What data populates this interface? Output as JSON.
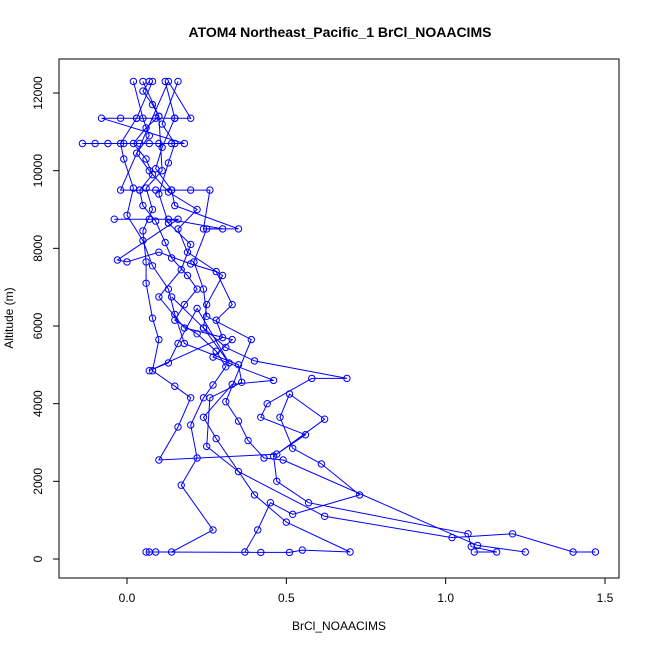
{
  "chart_data": {
    "type": "line",
    "title": "ATOM4 Northeast_Pacific_1 BrCl_NOAACIMS",
    "xlabel": "BrCl_NOAACIMS",
    "ylabel": "Altitude (m)",
    "xlim": [
      -0.2,
      1.5
    ],
    "ylim": [
      -300,
      12700
    ],
    "xticks": [
      0.0,
      0.5,
      1.0,
      1.5
    ],
    "xtick_labels": [
      "0.0",
      "0.5",
      "1.0",
      "1.5"
    ],
    "yticks": [
      0,
      2000,
      4000,
      6000,
      8000,
      10000,
      12000
    ],
    "ytick_labels": [
      "0",
      "2000",
      "4000",
      "6000",
      "8000",
      "10000",
      "12000"
    ],
    "grid": false,
    "legend": "none",
    "series_color": "#0000ff",
    "marker": "open-circle",
    "series": [
      {
        "points": [
          [
            0.07,
            180
          ],
          [
            0.14,
            180
          ],
          [
            0.27,
            750
          ],
          [
            0.17,
            1900
          ],
          [
            0.22,
            2600
          ],
          [
            0.2,
            3450
          ],
          [
            0.24,
            4150
          ],
          [
            0.27,
            4480
          ],
          [
            0.31,
            4950
          ],
          [
            0.28,
            5350
          ],
          [
            0.22,
            5800
          ],
          [
            0.15,
            6150
          ],
          [
            0.18,
            6550
          ],
          [
            0.22,
            6950
          ],
          [
            0.19,
            7300
          ],
          [
            0.14,
            7750
          ],
          [
            0.12,
            8150
          ],
          [
            0.09,
            8700
          ],
          [
            0.05,
            9100
          ],
          [
            0.04,
            9500
          ],
          [
            0.08,
            9900
          ],
          [
            0.06,
            10300
          ],
          [
            0.02,
            10700
          ],
          [
            0.06,
            11100
          ],
          [
            0.1,
            11400
          ],
          [
            0.08,
            11700
          ],
          [
            0.05,
            12050
          ],
          [
            0.07,
            12300
          ]
        ]
      },
      {
        "points": [
          [
            0.06,
            180
          ],
          [
            0.09,
            180
          ],
          [
            0.42,
            170
          ],
          [
            0.51,
            170
          ],
          [
            0.55,
            230
          ],
          [
            0.7,
            180
          ],
          [
            0.5,
            950
          ],
          [
            0.4,
            1650
          ],
          [
            0.28,
            3100
          ],
          [
            0.24,
            3650
          ],
          [
            0.33,
            4500
          ],
          [
            0.46,
            4600
          ],
          [
            0.27,
            5200
          ],
          [
            0.33,
            5650
          ],
          [
            0.18,
            5950
          ],
          [
            0.1,
            6750
          ],
          [
            0.17,
            7450
          ],
          [
            0.2,
            8100
          ],
          [
            0.13,
            8650
          ],
          [
            0.1,
            9400
          ],
          [
            0.13,
            10200
          ],
          [
            0.15,
            10700
          ],
          [
            0.11,
            11200
          ],
          [
            0.16,
            12300
          ]
        ]
      },
      {
        "points": [
          [
            1.47,
            180
          ],
          [
            1.4,
            180
          ],
          [
            1.21,
            650
          ],
          [
            1.02,
            550
          ],
          [
            0.62,
            1100
          ],
          [
            0.35,
            2250
          ],
          [
            0.25,
            2900
          ],
          [
            0.26,
            4150
          ],
          [
            0.36,
            4550
          ],
          [
            0.35,
            5000
          ],
          [
            0.18,
            5550
          ],
          [
            0.15,
            6300
          ],
          [
            0.13,
            6950
          ],
          [
            0.08,
            7550
          ],
          [
            0.05,
            8200
          ],
          [
            0.0,
            8850
          ],
          [
            0.02,
            9550
          ],
          [
            -0.01,
            10300
          ],
          [
            -0.02,
            10700
          ],
          [
            0.03,
            11350
          ],
          [
            0.08,
            12300
          ]
        ]
      },
      {
        "points": [
          [
            1.09,
            180
          ],
          [
            1.16,
            180
          ],
          [
            1.08,
            320
          ],
          [
            1.07,
            650
          ],
          [
            0.57,
            1450
          ],
          [
            0.47,
            2000
          ],
          [
            0.46,
            2650
          ],
          [
            0.56,
            3200
          ],
          [
            0.42,
            3650
          ],
          [
            0.44,
            4000
          ],
          [
            0.58,
            4650
          ],
          [
            0.69,
            4650
          ],
          [
            0.4,
            5100
          ],
          [
            0.31,
            5450
          ],
          [
            0.24,
            5950
          ],
          [
            0.25,
            6550
          ],
          [
            0.3,
            7300
          ],
          [
            0.19,
            7900
          ],
          [
            0.16,
            8500
          ],
          [
            0.22,
            9000
          ],
          [
            0.13,
            9450
          ],
          [
            0.07,
            10000
          ],
          [
            0.03,
            10450
          ],
          [
            0.07,
            10900
          ],
          [
            0.05,
            11350
          ],
          [
            0.02,
            12300
          ]
        ]
      },
      {
        "points": [
          [
            0.37,
            180
          ],
          [
            0.41,
            750
          ],
          [
            0.45,
            1450
          ],
          [
            0.52,
            1150
          ],
          [
            0.73,
            1650
          ],
          [
            0.61,
            2450
          ],
          [
            0.52,
            2850
          ],
          [
            0.48,
            3650
          ],
          [
            0.51,
            4250
          ],
          [
            0.62,
            3600
          ],
          [
            0.47,
            2700
          ],
          [
            0.1,
            2550
          ],
          [
            0.16,
            3400
          ],
          [
            0.2,
            4150
          ],
          [
            0.15,
            4450
          ],
          [
            0.08,
            4850
          ],
          [
            0.1,
            5650
          ],
          [
            0.08,
            6200
          ],
          [
            0.06,
            7100
          ],
          [
            0.06,
            7650
          ],
          [
            0.05,
            8450
          ],
          [
            0.08,
            9000
          ],
          [
            0.06,
            9550
          ],
          [
            0.11,
            10000
          ],
          [
            0.1,
            11400
          ],
          [
            0.05,
            12300
          ]
        ]
      },
      {
        "points": [
          [
            1.25,
            180
          ],
          [
            1.1,
            350
          ],
          [
            0.49,
            2550
          ],
          [
            0.43,
            2600
          ],
          [
            0.38,
            3050
          ],
          [
            0.35,
            3550
          ],
          [
            0.31,
            4050
          ],
          [
            0.39,
            5650
          ],
          [
            0.25,
            6250
          ],
          [
            0.24,
            6950
          ],
          [
            0.21,
            7650
          ],
          [
            0.25,
            8500
          ],
          [
            0.35,
            8500
          ],
          [
            0.15,
            9100
          ],
          [
            0.14,
            9500
          ],
          [
            0.09,
            10050
          ],
          [
            0.11,
            10600
          ],
          [
            0.15,
            11350
          ],
          [
            0.12,
            12300
          ]
        ]
      },
      {
        "points": [
          [
            -0.14,
            10700
          ],
          [
            -0.1,
            10700
          ],
          [
            -0.06,
            10700
          ],
          [
            -0.01,
            10700
          ],
          [
            0.04,
            10700
          ],
          [
            0.07,
            10700
          ],
          [
            0.1,
            10700
          ],
          [
            0.14,
            10700
          ],
          [
            0.18,
            10700
          ],
          [
            -0.08,
            11350
          ],
          [
            -0.02,
            11350
          ],
          [
            0.03,
            11350
          ],
          [
            0.09,
            11350
          ],
          [
            0.15,
            11350
          ],
          [
            0.2,
            11350
          ],
          [
            0.13,
            12300
          ],
          [
            -0.02,
            9500
          ],
          [
            0.04,
            9500
          ],
          [
            0.09,
            9500
          ],
          [
            0.14,
            9500
          ],
          [
            0.2,
            9500
          ],
          [
            0.26,
            9500
          ],
          [
            0.24,
            8500
          ],
          [
            0.3,
            8500
          ],
          [
            0.13,
            8750
          ],
          [
            0.07,
            8750
          ],
          [
            -0.04,
            8750
          ],
          [
            0.16,
            8750
          ],
          [
            -0.03,
            7700
          ],
          [
            0.0,
            7650
          ],
          [
            0.1,
            7900
          ],
          [
            0.2,
            7600
          ],
          [
            0.28,
            7400
          ],
          [
            0.33,
            6550
          ],
          [
            0.28,
            6150
          ],
          [
            0.3,
            5700
          ],
          [
            0.07,
            4850
          ],
          [
            0.13,
            5050
          ],
          [
            0.16,
            5550
          ],
          [
            0.22,
            6450
          ],
          [
            0.32,
            5050
          ],
          [
            0.24,
            5950
          ],
          [
            0.14,
            6750
          ]
        ]
      }
    ]
  }
}
